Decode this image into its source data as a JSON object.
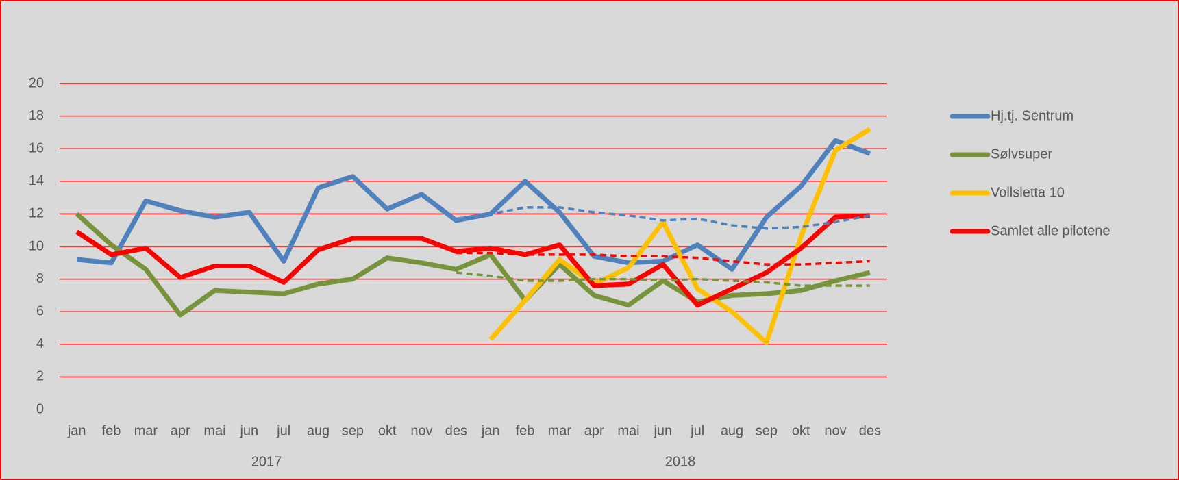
{
  "chart_data": {
    "type": "line",
    "categories": [
      "jan",
      "feb",
      "mar",
      "apr",
      "mai",
      "jun",
      "jul",
      "aug",
      "sep",
      "okt",
      "nov",
      "des",
      "jan",
      "feb",
      "mar",
      "apr",
      "mai",
      "jun",
      "jul",
      "aug",
      "sep",
      "okt",
      "nov",
      "des"
    ],
    "x_groups": [
      "2017",
      "2018"
    ],
    "ylim": [
      0,
      20
    ],
    "yticks": [
      0,
      2,
      4,
      6,
      8,
      10,
      12,
      14,
      16,
      18,
      20
    ],
    "grid": true,
    "grid_color": "#ff0000",
    "legend": "right",
    "series": [
      {
        "name": "Hj.tj. Sentrum",
        "color": "#4f81bd",
        "values": [
          9.2,
          9.0,
          12.8,
          12.2,
          11.8,
          12.1,
          9.1,
          13.6,
          14.3,
          12.3,
          13.2,
          11.6,
          12.0,
          14.0,
          12.1,
          9.4,
          9.0,
          9.1,
          10.1,
          8.6,
          11.8,
          13.7,
          16.5,
          15.7
        ]
      },
      {
        "name": "Sølvsuper",
        "color": "#77933c",
        "values": [
          12.0,
          10.1,
          8.6,
          5.8,
          7.3,
          7.2,
          7.1,
          7.7,
          8.0,
          9.3,
          9.0,
          8.6,
          9.5,
          6.7,
          8.9,
          7.0,
          6.4,
          7.9,
          6.6,
          7.0,
          7.1,
          7.3,
          7.9,
          8.4
        ]
      },
      {
        "name": "Vollsletta 10",
        "color": "#ffc000",
        "values": [
          null,
          null,
          null,
          null,
          null,
          null,
          null,
          null,
          null,
          null,
          null,
          null,
          4.3,
          6.7,
          9.2,
          7.7,
          8.7,
          11.5,
          7.4,
          6.0,
          4.1,
          10.6,
          15.9,
          17.2
        ]
      },
      {
        "name": "Samlet alle pilotene",
        "color": "#ff0000",
        "values": [
          10.9,
          9.5,
          9.9,
          8.1,
          8.8,
          8.8,
          7.8,
          9.8,
          10.5,
          10.5,
          10.5,
          9.7,
          9.9,
          9.5,
          10.1,
          7.6,
          7.7,
          8.9,
          6.4,
          7.4,
          8.4,
          9.9,
          11.8,
          11.9
        ]
      },
      {
        "color": "#4f81bd",
        "dashed": true,
        "values": [
          null,
          null,
          null,
          null,
          null,
          null,
          null,
          null,
          null,
          null,
          null,
          11.7,
          12.0,
          12.4,
          12.4,
          12.1,
          11.9,
          11.6,
          11.7,
          11.3,
          11.1,
          11.2,
          11.5,
          11.9
        ]
      },
      {
        "color": "#ff0000",
        "dashed": true,
        "values": [
          null,
          null,
          null,
          null,
          null,
          null,
          null,
          null,
          null,
          null,
          null,
          9.6,
          9.6,
          9.5,
          9.5,
          9.5,
          9.4,
          9.4,
          9.3,
          9.1,
          8.9,
          8.9,
          9.0,
          9.1
        ]
      },
      {
        "color": "#77933c",
        "dashed": true,
        "values": [
          null,
          null,
          null,
          null,
          null,
          null,
          null,
          null,
          null,
          null,
          null,
          8.4,
          8.2,
          7.9,
          7.9,
          8.0,
          8.0,
          7.9,
          8.0,
          7.9,
          7.8,
          7.6,
          7.6,
          7.6
        ]
      }
    ]
  }
}
